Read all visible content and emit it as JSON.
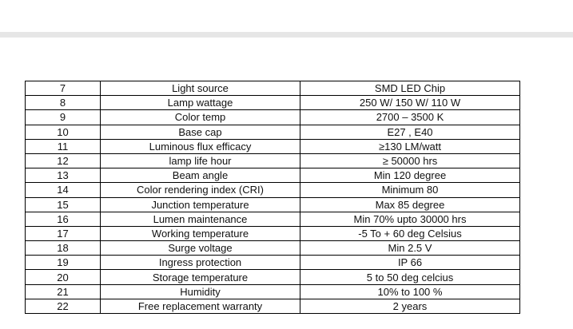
{
  "table": {
    "rows": [
      {
        "no": "7",
        "parameter": "Light source",
        "value": "SMD LED Chip"
      },
      {
        "no": "8",
        "parameter": "Lamp wattage",
        "value": "250 W/ 150 W/ 110 W"
      },
      {
        "no": "9",
        "parameter": "Color temp",
        "value": "2700 – 3500 K"
      },
      {
        "no": "10",
        "parameter": "Base cap",
        "value": "E27 , E40"
      },
      {
        "no": "11",
        "parameter": "Luminous flux efficacy",
        "value": "≥130 LM/watt"
      },
      {
        "no": "12",
        "parameter": "lamp life hour",
        "value": "≥ 50000 hrs"
      },
      {
        "no": "13",
        "parameter": "Beam angle",
        "value": "Min 120 degree"
      },
      {
        "no": "14",
        "parameter": "Color rendering index (CRI)",
        "value": "Minimum 80"
      },
      {
        "no": "15",
        "parameter": "Junction temperature",
        "value": "Max 85 degree"
      },
      {
        "no": "16",
        "parameter": "Lumen maintenance",
        "value": "Min 70% upto 30000 hrs"
      },
      {
        "no": "17",
        "parameter": "Working temperature",
        "value": "-5 To + 60 deg Celsius"
      },
      {
        "no": "18",
        "parameter": "Surge voltage",
        "value": "Min 2.5 V"
      },
      {
        "no": "19",
        "parameter": "Ingress protection",
        "value": "IP 66"
      },
      {
        "no": "20",
        "parameter": "Storage temperature",
        "value": "5 to 50 deg celcius"
      },
      {
        "no": "21",
        "parameter": "Humidity",
        "value": "10% to 100 %"
      },
      {
        "no": "22",
        "parameter": "Free replacement warranty",
        "value": "2 years"
      }
    ]
  }
}
